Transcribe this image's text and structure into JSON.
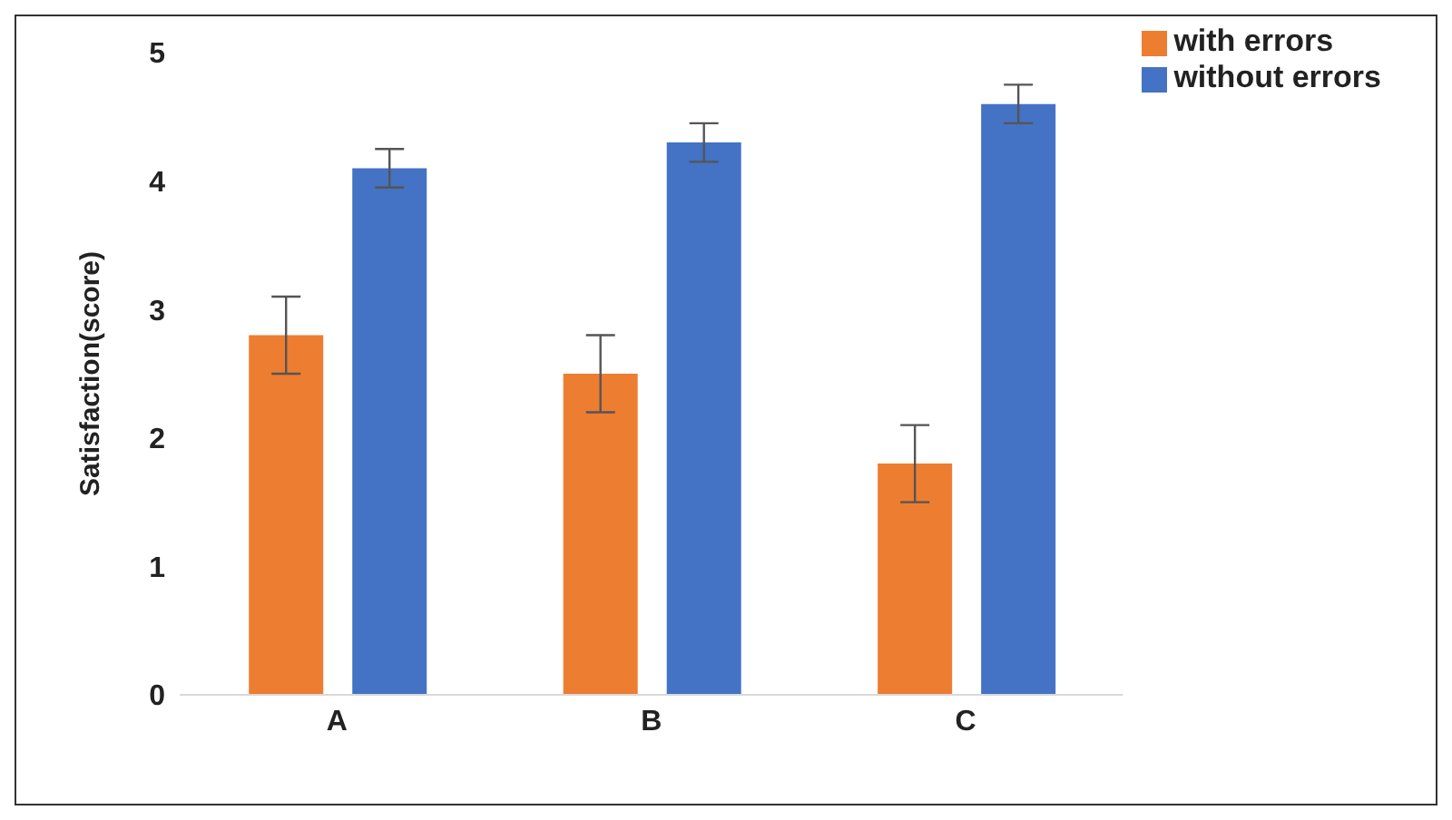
{
  "chart_data": {
    "type": "bar",
    "ylabel": "Satisfaction(score)",
    "categories": [
      "A",
      "B",
      "C"
    ],
    "series": [
      {
        "name": "with errors",
        "color": "#ed7d31",
        "values": [
          2.8,
          2.5,
          1.8
        ],
        "errors": [
          0.3,
          0.3,
          0.3
        ]
      },
      {
        "name": "without errors",
        "color": "#4472c4",
        "values": [
          4.1,
          4.3,
          4.6
        ],
        "errors": [
          0.15,
          0.15,
          0.15
        ]
      }
    ],
    "ylim": [
      0,
      5
    ],
    "yticks": [
      0,
      1,
      2,
      3,
      4,
      5
    ],
    "grid": false,
    "legend": "top right"
  }
}
